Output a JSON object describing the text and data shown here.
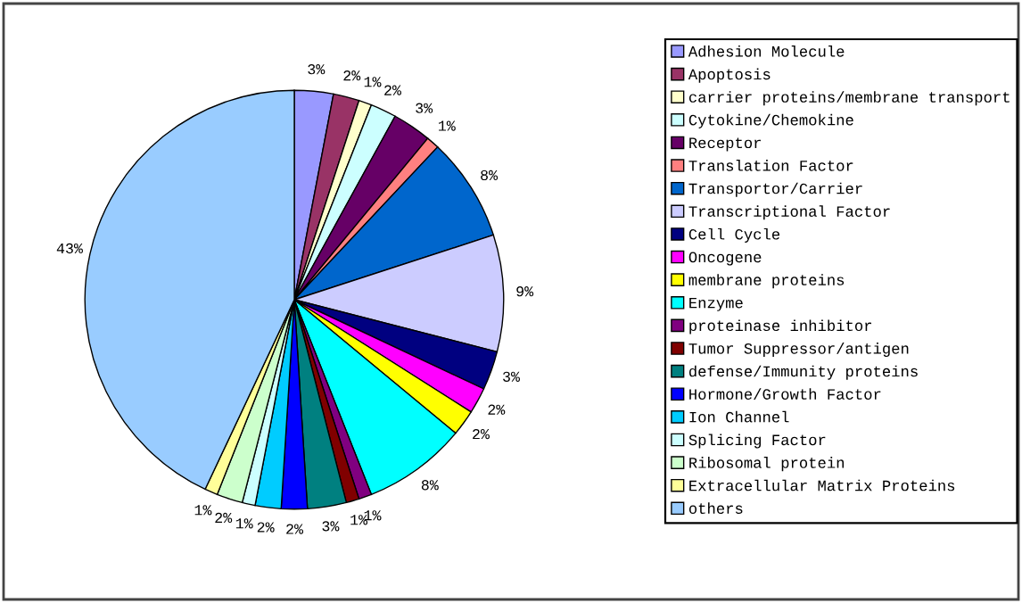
{
  "chart_data": {
    "type": "pie",
    "legend": "right",
    "value_labels": [
      "3%",
      "2%",
      "1%",
      "2%",
      "3%",
      "1%",
      "8%",
      "9%",
      "3%",
      "2%",
      "2%",
      "8%",
      "1%",
      "1%",
      "3%",
      "2%",
      "2%",
      "1%",
      "2%",
      "1%",
      "43%"
    ],
    "categories": [
      "Adhesion Molecule",
      "Apoptosis",
      "carrier proteins/membrane transport",
      "Cytokine/Chemokine",
      "Receptor",
      "Translation Factor",
      "Transportor/Carrier",
      "Transcriptional Factor",
      "Cell Cycle",
      "Oncogene",
      "membrane proteins",
      "Enzyme",
      "proteinase inhibitor",
      "Tumor Suppressor/antigen",
      "defense/Immunity proteins",
      "Hormone/Growth Factor",
      "Ion Channel",
      "Splicing Factor",
      "Ribosomal protein",
      "Extracellular Matrix Proteins",
      "others"
    ],
    "values": [
      3,
      2,
      1,
      2,
      3,
      1,
      8,
      9,
      3,
      2,
      2,
      8,
      1,
      1,
      3,
      2,
      2,
      1,
      2,
      1,
      43
    ],
    "colors": [
      "#9999ff",
      "#993366",
      "#ffffcc",
      "#ccffff",
      "#660066",
      "#ff8080",
      "#0066cc",
      "#ccccff",
      "#000080",
      "#ff00ff",
      "#ffff00",
      "#00ffff",
      "#800080",
      "#800000",
      "#008080",
      "#0000ff",
      "#00ccff",
      "#ccffff",
      "#ccffcc",
      "#ffff99",
      "#99ccff"
    ]
  }
}
